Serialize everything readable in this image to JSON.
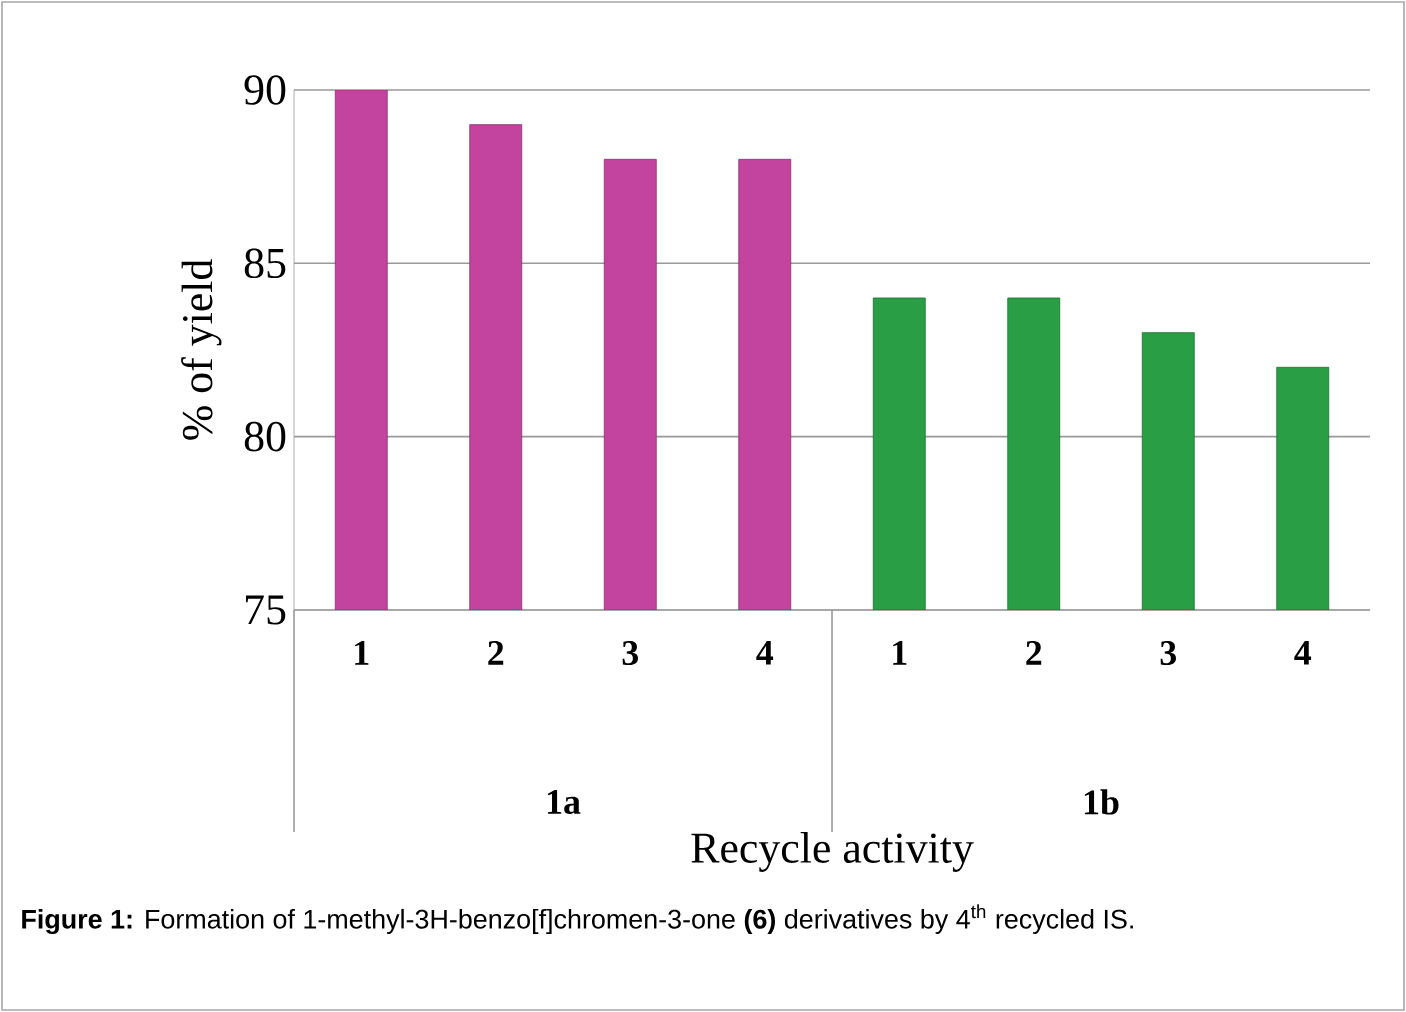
{
  "chart_data": {
    "type": "bar",
    "ylabel": "% of yield",
    "xlabel": "Recycle activity",
    "categories": [
      "1",
      "2",
      "3",
      "4",
      "1",
      "2",
      "3",
      "4"
    ],
    "values": [
      90,
      89,
      88,
      88,
      84,
      84,
      83,
      82
    ],
    "colors": [
      "#c2449e",
      "#c2449e",
      "#c2449e",
      "#c2449e",
      "#2a9e45",
      "#2a9e45",
      "#2a9e45",
      "#2a9e45"
    ],
    "ylim": [
      75,
      90
    ],
    "yticks": [
      75,
      80,
      85,
      90
    ],
    "grid": "y",
    "annotations": [
      "1a",
      "1b",
      "**Figure 1:** Formation of 1-methyl-3H-benzo[f]chromen-3-one **(6)** derivatives by 4$^{th}$ recycled IS."
    ]
  }
}
